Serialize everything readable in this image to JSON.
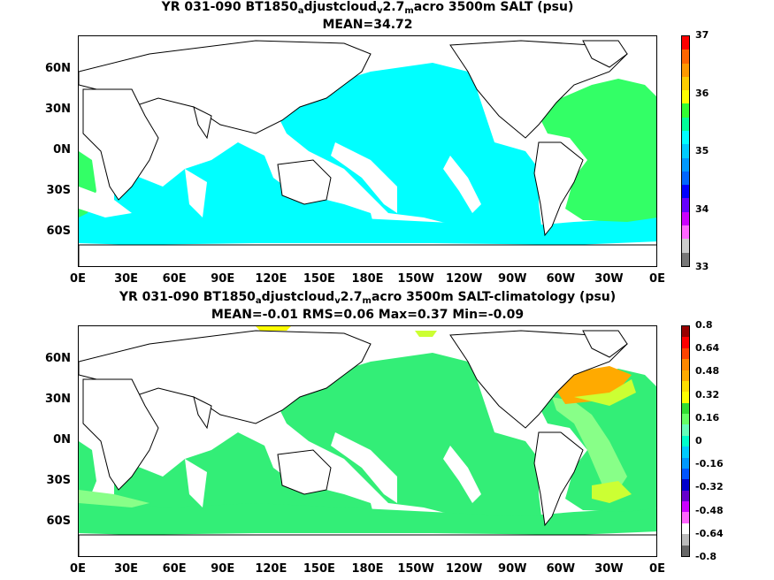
{
  "panels": [
    {
      "title_parts": [
        "YR 031-090 BT1850",
        "a",
        "djustcloud",
        "v",
        "2.7",
        "m",
        "acro 3500m SALT (psu)"
      ],
      "subtitle": "MEAN=34.72",
      "colorbar": {
        "labels": [
          "37",
          "36",
          "35",
          "34",
          "33"
        ],
        "colors": [
          "#ff0000",
          "#ff6600",
          "#ff9900",
          "#ffcc00",
          "#ffff00",
          "#33ff33",
          "#00ff99",
          "#00ffff",
          "#00ccff",
          "#0099ff",
          "#0066ff",
          "#0000ff",
          "#6600ff",
          "#cc00ff",
          "#ff66ff",
          "#cccccc",
          "#777777"
        ]
      }
    },
    {
      "title_parts": [
        "YR 031-090 BT1850",
        "a",
        "djustcloud",
        "v",
        "2.7",
        "m",
        "acro 3500m SALT-climatology (psu)"
      ],
      "subtitle": "MEAN=-0.01   RMS=0.06   Max=0.37   Min=-0.09",
      "colorbar": {
        "labels": [
          "0.8",
          "0.64",
          "0.48",
          "0.32",
          "0.16",
          "0",
          "-0.16",
          "-0.32",
          "-0.48",
          "-0.64",
          "-0.8"
        ],
        "colors": [
          "#990000",
          "#ff0000",
          "#ff4400",
          "#ff8800",
          "#ffaa00",
          "#ffdd00",
          "#ffff00",
          "#33dd33",
          "#66ff66",
          "#66ffbb",
          "#00ffcc",
          "#00ccff",
          "#0099ff",
          "#0055ff",
          "#0000cc",
          "#6600cc",
          "#cc00ff",
          "#ff66ff",
          "#ffffff",
          "#bbbbbb",
          "#666666"
        ]
      }
    }
  ],
  "axes": {
    "y_ticks": [
      "60N",
      "30N",
      "0N",
      "30S",
      "60S"
    ],
    "x_ticks": [
      "0E",
      "30E",
      "60E",
      "90E",
      "120E",
      "150E",
      "180E",
      "150W",
      "120W",
      "90W",
      "60W",
      "30W",
      "0E"
    ]
  },
  "colors": {
    "pacific_top": "#00ffff",
    "atlantic_top": "#33ff66",
    "indian_top": "#00ffff",
    "diff_main": "#33ee77",
    "diff_pos_low": "#88ff88",
    "diff_pos_mid": "#ccff33",
    "diff_pos_high": "#ffaa00"
  }
}
